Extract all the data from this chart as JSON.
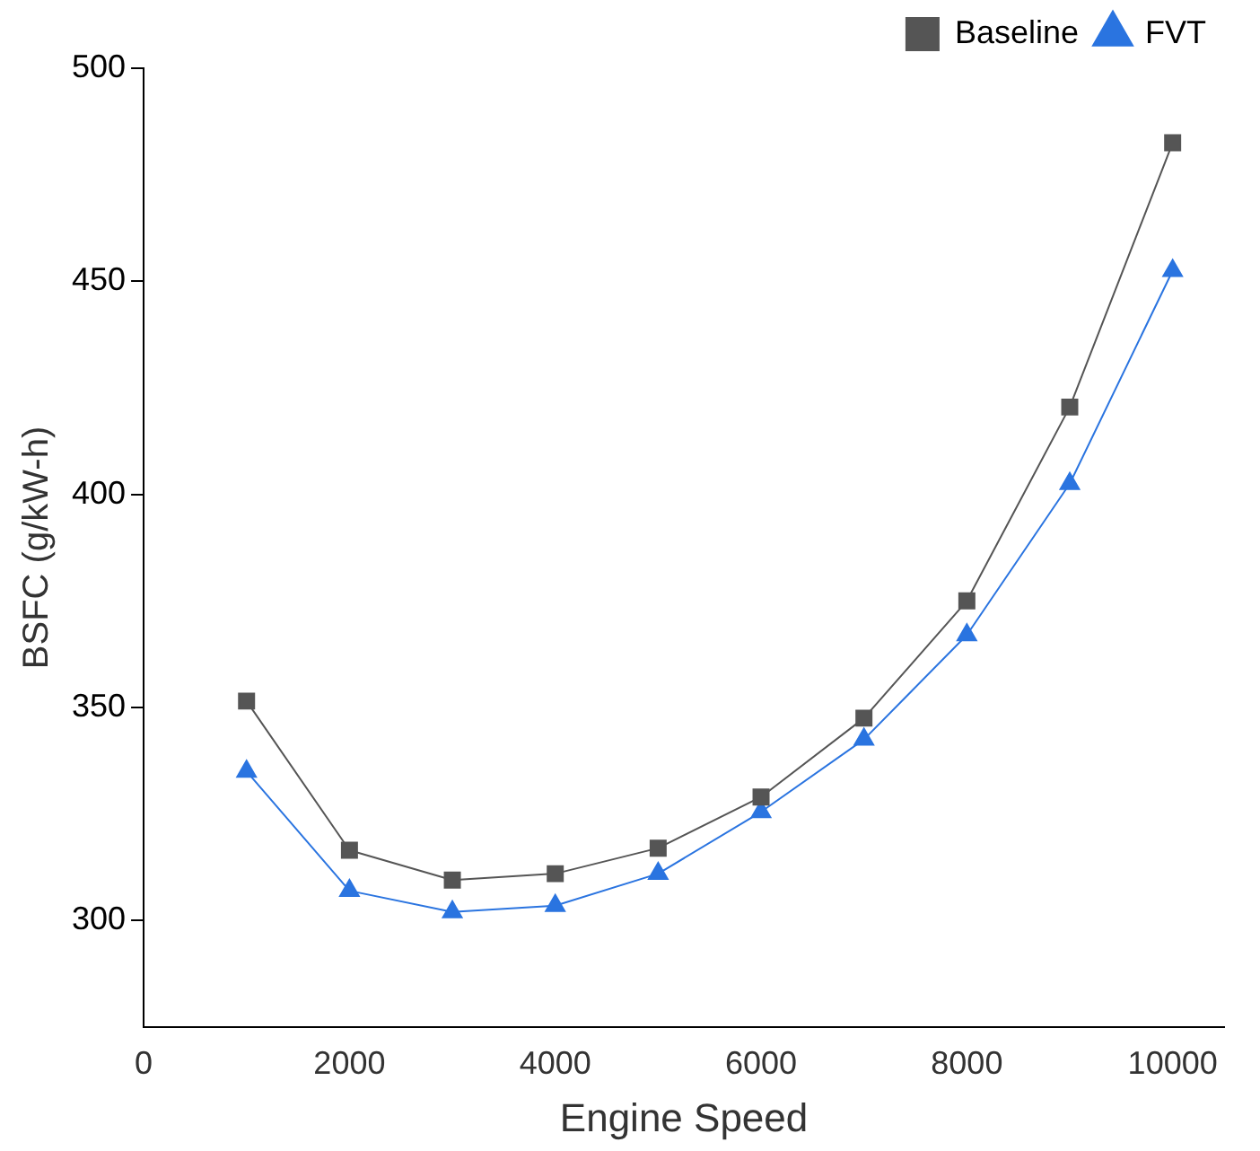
{
  "chart_data": {
    "type": "line",
    "xlabel": "Engine Speed",
    "ylabel": "BSFC (g/kW-h)",
    "x": [
      1000,
      2000,
      3000,
      4000,
      5000,
      6000,
      7000,
      8000,
      9000,
      10000
    ],
    "series": [
      {
        "name": "Baseline",
        "color": "#555555",
        "marker": "square",
        "values": [
          351.5,
          316.5,
          309.5,
          311,
          317,
          329,
          347.5,
          375,
          420.5,
          482.5
        ]
      },
      {
        "name": "FVT",
        "color": "#2a74e0",
        "marker": "triangle",
        "values": [
          335,
          307,
          302,
          303.5,
          311,
          325.5,
          342.5,
          367,
          402.5,
          452.5
        ]
      }
    ],
    "xlim": [
      0,
      10500
    ],
    "xticks": [
      0,
      2000,
      4000,
      6000,
      8000,
      10000
    ],
    "ylim": [
      275,
      500
    ],
    "yticks": [
      300,
      350,
      400,
      450,
      500
    ],
    "grid": false,
    "legend": "top right",
    "line_style": "solid"
  }
}
